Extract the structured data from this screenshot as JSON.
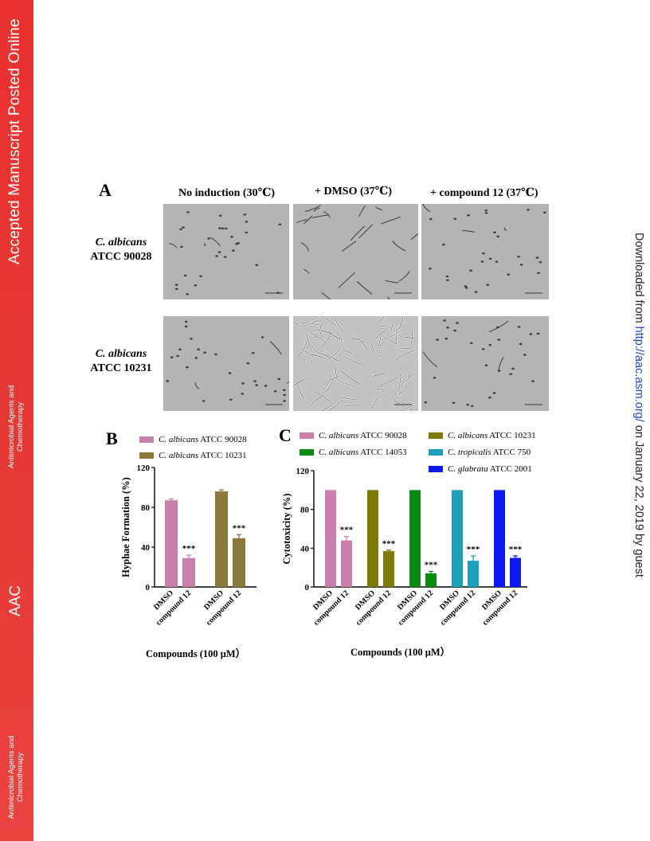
{
  "sidebar": {
    "title": "Accepted Manuscript Posted Online",
    "journal_line1": "Antimicrobial Agents and",
    "journal_line2": "Chemotherapy",
    "abbrev": "AAC"
  },
  "download_note": {
    "prefix": "Downloaded from ",
    "link": "http://aac.asm.org/",
    "suffix": " on January 22, 2019 by guest"
  },
  "panel_a": {
    "letter": "A",
    "columns": [
      "No induction (30℃)",
      "+ DMSO (37℃)",
      "+ compound 12 (37℃)"
    ],
    "rows": [
      {
        "species": "C. albicans",
        "strain": "ATCC 90028"
      },
      {
        "species": "C. albicans",
        "strain": "ATCC 10231"
      }
    ]
  },
  "chart_data": [
    {
      "type": "bar",
      "panel": "B",
      "ylabel": "Hyphae Formation (%)",
      "xlabel": "Compounds (100 μM）",
      "ylim": [
        0,
        120
      ],
      "yticks": [
        0,
        40,
        80,
        120
      ],
      "categories": [
        "DMSO",
        "compound 12"
      ],
      "series": [
        {
          "name": "ATCC 90028",
          "species": "C. albicans",
          "color": "#c97fab",
          "values": [
            87,
            29
          ],
          "errors": [
            1.5,
            3
          ],
          "significance": [
            "",
            "***"
          ]
        },
        {
          "name": "ATCC 10231",
          "species": "C. albicans",
          "color": "#8b7a3a",
          "values": [
            96,
            49
          ],
          "errors": [
            1.5,
            3.5
          ],
          "significance": [
            "",
            "***"
          ]
        }
      ]
    },
    {
      "type": "bar",
      "panel": "C",
      "ylabel": "Cytotoxicity (%)",
      "xlabel": "Compounds (100 μM）",
      "ylim": [
        0,
        120
      ],
      "yticks": [
        0,
        40,
        80,
        120
      ],
      "categories": [
        "DMSO",
        "compound 12"
      ],
      "series": [
        {
          "name": "ATCC 90028",
          "species": "C. albicans",
          "color": "#cc7fac",
          "values": [
            100,
            48
          ],
          "errors": [
            0,
            4
          ],
          "significance": [
            "",
            "***"
          ]
        },
        {
          "name": "ATCC 10231",
          "species": "C. albicans",
          "color": "#7f7a05",
          "values": [
            100,
            37
          ],
          "errors": [
            0,
            1
          ],
          "significance": [
            "",
            "***"
          ]
        },
        {
          "name": "ATCC 14053",
          "species": "C. albicans",
          "color": "#0b8a12",
          "values": [
            100,
            14
          ],
          "errors": [
            0,
            2
          ],
          "significance": [
            "",
            "***"
          ]
        },
        {
          "name": "ATCC 750",
          "species": "C. tropicalis",
          "color": "#1aa0b8",
          "values": [
            100,
            27
          ],
          "errors": [
            0,
            5
          ],
          "significance": [
            "",
            "***"
          ]
        },
        {
          "name": "ATCC 2001",
          "species": "C. glabrata",
          "color": "#0a1af0",
          "values": [
            100,
            30
          ],
          "errors": [
            0,
            2
          ],
          "significance": [
            "",
            "***"
          ]
        }
      ]
    }
  ]
}
